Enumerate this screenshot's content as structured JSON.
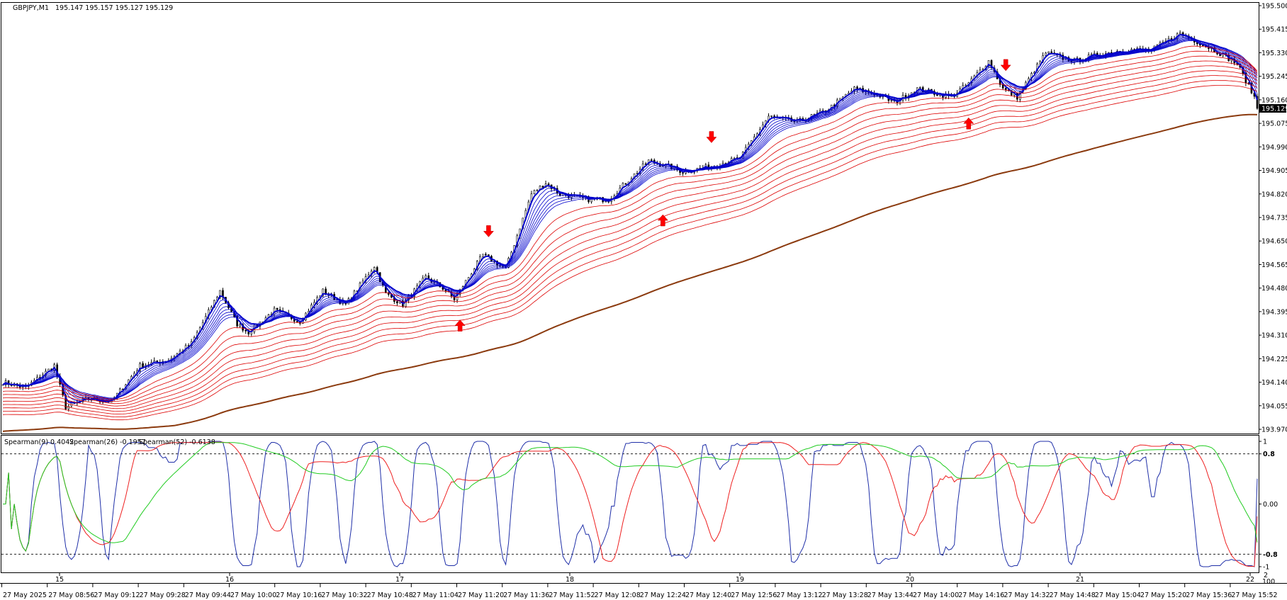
{
  "main_header": {
    "symbol_tf": "GBPJPY,M1",
    "ohlc": "195.147 195.157 195.127 195.129"
  },
  "indicator_header": {
    "s9": "Spearman(9) 0.4042",
    "s26": "Spearman(26) -0.1957",
    "s52": "Spearman(52) -0.6138"
  },
  "price_axis": {
    "labels": [
      "195.500",
      "195.415",
      "195.330",
      "195.245",
      "195.160",
      "195.075",
      "194.990",
      "194.905",
      "194.820",
      "194.735",
      "194.650",
      "194.565",
      "194.480",
      "194.395",
      "194.310",
      "194.225",
      "194.140",
      "194.055",
      "193.970"
    ],
    "current": "195.129",
    "current_value": 195.129
  },
  "indicator_axis": {
    "labels": [
      {
        "text": "1",
        "v": 1.0,
        "bold": false
      },
      {
        "text": "0.8",
        "v": 0.8,
        "bold": true
      },
      {
        "text": "0.00",
        "v": 0.0,
        "bold": false
      },
      {
        "text": "-0.8",
        "v": -0.8,
        "bold": true
      },
      {
        "text": "-1",
        "v": -1.0,
        "bold": false
      }
    ],
    "corner_top": "2",
    "corner_bottom": "100"
  },
  "day_labels": [
    "15",
    "16",
    "17",
    "18",
    "19",
    "20",
    "21",
    "22"
  ],
  "time_labels": [
    "27 May 2025",
    "27 May 08:56",
    "27 May 09:12",
    "27 May 09:28",
    "27 May 09:44",
    "27 May 10:00",
    "27 May 10:16",
    "27 May 10:32",
    "27 May 10:48",
    "27 May 11:04",
    "27 May 11:20",
    "27 May 11:36",
    "27 May 11:52",
    "27 May 12:08",
    "27 May 12:24",
    "27 May 12:40",
    "27 May 12:56",
    "27 May 13:12",
    "27 May 13:28",
    "27 May 13:44",
    "27 May 14:00",
    "27 May 14:16",
    "27 May 14:32",
    "27 May 14:48",
    "27 May 15:04",
    "27 May 15:20",
    "27 May 15:36",
    "27 May 15:52"
  ],
  "chart_data": [
    {
      "type": "candlestick",
      "title": "GBPJPY,M1",
      "ylim": [
        193.97,
        195.5
      ],
      "bars": 440,
      "price_path": [
        [
          0,
          194.14
        ],
        [
          8,
          194.12
        ],
        [
          18,
          194.2
        ],
        [
          22,
          194.05
        ],
        [
          30,
          194.08
        ],
        [
          38,
          194.07
        ],
        [
          48,
          194.2
        ],
        [
          58,
          194.22
        ],
        [
          66,
          194.28
        ],
        [
          76,
          194.47
        ],
        [
          82,
          194.35
        ],
        [
          86,
          194.32
        ],
        [
          95,
          194.4
        ],
        [
          104,
          194.36
        ],
        [
          112,
          194.47
        ],
        [
          120,
          194.42
        ],
        [
          130,
          194.56
        ],
        [
          134,
          194.46
        ],
        [
          140,
          194.42
        ],
        [
          148,
          194.52
        ],
        [
          154,
          194.48
        ],
        [
          158,
          194.44
        ],
        [
          168,
          194.6
        ],
        [
          176,
          194.55
        ],
        [
          185,
          194.82
        ],
        [
          190,
          194.86
        ],
        [
          195,
          194.82
        ],
        [
          205,
          194.8
        ],
        [
          212,
          194.8
        ],
        [
          226,
          194.94
        ],
        [
          233,
          194.92
        ],
        [
          238,
          194.9
        ],
        [
          248,
          194.92
        ],
        [
          258,
          194.95
        ],
        [
          268,
          195.1
        ],
        [
          278,
          195.08
        ],
        [
          288,
          195.12
        ],
        [
          298,
          195.2
        ],
        [
          306,
          195.18
        ],
        [
          312,
          195.15
        ],
        [
          320,
          195.2
        ],
        [
          332,
          195.17
        ],
        [
          338,
          195.22
        ],
        [
          345,
          195.3
        ],
        [
          350,
          195.2
        ],
        [
          355,
          195.17
        ],
        [
          365,
          195.33
        ],
        [
          375,
          195.3
        ],
        [
          382,
          195.32
        ],
        [
          392,
          195.34
        ],
        [
          402,
          195.34
        ],
        [
          412,
          195.4
        ],
        [
          418,
          195.37
        ],
        [
          424,
          195.34
        ],
        [
          432,
          195.29
        ],
        [
          440,
          195.13
        ]
      ],
      "ema_fan": [
        {
          "name": "fast",
          "color": "#0000cc",
          "periods": [
            3,
            5,
            7,
            9,
            11,
            13,
            15,
            17
          ]
        },
        {
          "name": "slow",
          "color": "#dd0000",
          "periods": [
            24,
            30,
            36,
            42,
            48,
            54,
            60,
            66,
            72
          ]
        }
      ],
      "long_ma": {
        "color": "#8b3a0e",
        "period": 200
      },
      "signals": [
        {
          "type": "down",
          "bar": 170,
          "price": 194.67
        },
        {
          "type": "down",
          "bar": 248,
          "price": 195.01
        },
        {
          "type": "down",
          "bar": 351,
          "price": 195.27
        },
        {
          "type": "up",
          "bar": 160,
          "price": 194.36
        },
        {
          "type": "up",
          "bar": 231,
          "price": 194.74
        },
        {
          "type": "up",
          "bar": 338,
          "price": 195.09
        }
      ]
    },
    {
      "type": "line",
      "title": "Spearman",
      "ylim": [
        -1,
        1
      ],
      "levels": [
        0.8,
        -0.8
      ],
      "series": [
        {
          "name": "Spearman(9)",
          "color": "#1f2fa8",
          "period": 9,
          "last": 0.4042
        },
        {
          "name": "Spearman(26)",
          "color": "#ee2020",
          "period": 26,
          "last": -0.1957
        },
        {
          "name": "Spearman(52)",
          "color": "#22cc22",
          "period": 52,
          "last": -0.6138
        }
      ]
    }
  ]
}
